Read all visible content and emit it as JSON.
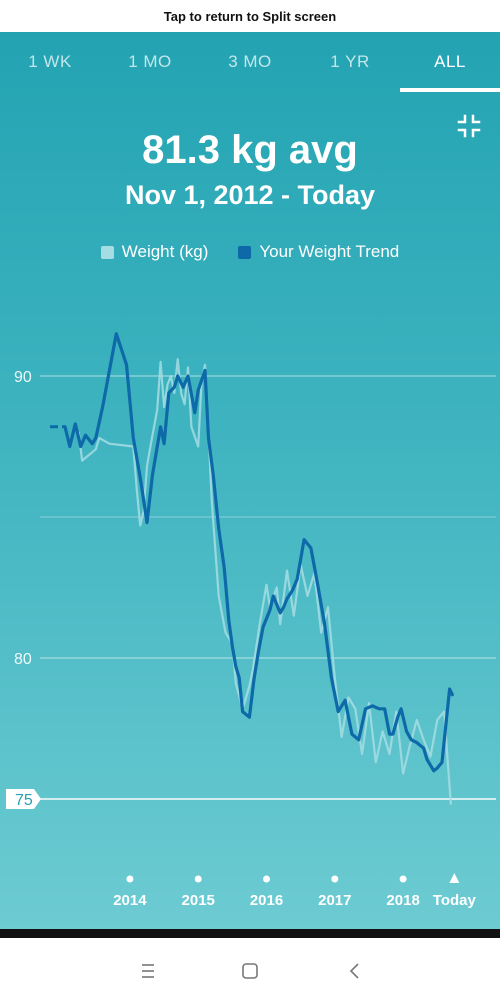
{
  "system": {
    "split_screen_label": "Tap to return to Split screen"
  },
  "tabs": [
    {
      "label": "1 WK",
      "active": false
    },
    {
      "label": "1 MO",
      "active": false
    },
    {
      "label": "3 MO",
      "active": false
    },
    {
      "label": "1 YR",
      "active": false
    },
    {
      "label": "ALL",
      "active": true
    }
  ],
  "icons": {
    "collapse": "collapse-icon",
    "nav_menu": "menu-icon",
    "nav_home": "home-square-icon",
    "nav_back": "back-chevron-icon"
  },
  "summary": {
    "headline": "81.3 kg avg",
    "date_range": "Nov 1, 2012 - Today"
  },
  "legend": [
    {
      "label": "Weight (kg)",
      "color": "#a6dde4"
    },
    {
      "label": "Your Weight Trend",
      "color": "#0e69a8"
    }
  ],
  "colors": {
    "background_top": "#23a3b2",
    "background_bottom": "#6dcbd2",
    "trend": "#0e69a8",
    "weight": "#a6dde4",
    "gridline": "#ffffff"
  },
  "chart_data": {
    "type": "line",
    "title": "",
    "xlabel": "",
    "ylabel": "",
    "ylim": [
      72.5,
      99
    ],
    "xlim": [
      2012.83,
      2018.95
    ],
    "y_ticks": [
      "90",
      "80",
      "75"
    ],
    "highlighted_y_tick": "75",
    "x_ticks": [
      {
        "label": "2014",
        "x": 2014.0,
        "marker": "dot"
      },
      {
        "label": "2015",
        "x": 2015.0,
        "marker": "dot"
      },
      {
        "label": "2016",
        "x": 2016.0,
        "marker": "dot"
      },
      {
        "label": "2017",
        "x": 2017.0,
        "marker": "dot"
      },
      {
        "label": "2018",
        "x": 2018.0,
        "marker": "dot"
      },
      {
        "label": "Today",
        "x": 2018.75,
        "marker": "triangle"
      }
    ],
    "series": [
      {
        "name": "Your Weight Trend",
        "x": [
          2012.83,
          2013.05,
          2013.12,
          2013.2,
          2013.28,
          2013.35,
          2013.45,
          2013.5,
          2013.6,
          2013.8,
          2013.95,
          2014.05,
          2014.15,
          2014.25,
          2014.33,
          2014.45,
          2014.5,
          2014.57,
          2014.65,
          2014.7,
          2014.78,
          2014.85,
          2014.95,
          2015.0,
          2015.1,
          2015.15,
          2015.22,
          2015.3,
          2015.38,
          2015.45,
          2015.5,
          2015.55,
          2015.6,
          2015.65,
          2015.75,
          2015.82,
          2015.88,
          2015.95,
          2016.05,
          2016.1,
          2016.2,
          2016.25,
          2016.3,
          2016.38,
          2016.45,
          2016.55,
          2016.65,
          2016.75,
          2016.85,
          2016.95,
          2017.05,
          2017.15,
          2017.25,
          2017.35,
          2017.45,
          2017.55,
          2017.65,
          2017.73,
          2017.8,
          2017.85,
          2017.92,
          2017.97,
          2018.05,
          2018.12,
          2018.2,
          2018.3,
          2018.35,
          2018.45,
          2018.5,
          2018.57,
          2018.62,
          2018.68,
          2018.72
        ],
        "values": [
          88.2,
          88.2,
          87.5,
          88.3,
          87.5,
          87.9,
          87.6,
          87.8,
          88.9,
          91.5,
          90.4,
          87.8,
          86.4,
          84.8,
          86.5,
          88.2,
          87.6,
          89.4,
          89.6,
          90.0,
          89.6,
          90.0,
          88.7,
          89.5,
          90.2,
          87.8,
          86.5,
          84.6,
          83.2,
          81.3,
          80.4,
          79.7,
          79.3,
          78.1,
          77.9,
          79.3,
          80.2,
          81.1,
          81.7,
          82.2,
          81.6,
          81.8,
          82.1,
          82.4,
          82.8,
          84.2,
          83.9,
          82.6,
          81.2,
          79.3,
          78.1,
          78.5,
          77.3,
          77.1,
          78.2,
          78.3,
          78.2,
          78.2,
          77.3,
          77.3,
          77.9,
          78.2,
          77.4,
          77.1,
          77.0,
          76.8,
          76.4,
          76.0,
          76.1,
          76.3,
          77.5,
          78.9,
          78.7
        ]
      },
      {
        "name": "Weight (kg)",
        "x": [
          2013.25,
          2013.3,
          2013.5,
          2013.55,
          2013.7,
          2014.05,
          2014.1,
          2014.15,
          2014.2,
          2014.25,
          2014.3,
          2014.4,
          2014.45,
          2014.5,
          2014.55,
          2014.6,
          2014.65,
          2014.7,
          2014.75,
          2014.8,
          2014.85,
          2014.9,
          2015.0,
          2015.05,
          2015.1,
          2015.2,
          2015.3,
          2015.4,
          2015.5,
          2015.55,
          2015.65,
          2015.75,
          2015.8,
          2015.9,
          2016.0,
          2016.05,
          2016.15,
          2016.2,
          2016.3,
          2016.4,
          2016.5,
          2016.6,
          2016.7,
          2016.8,
          2016.9,
          2017.0,
          2017.1,
          2017.2,
          2017.3,
          2017.4,
          2017.5,
          2017.6,
          2017.7,
          2017.8,
          2017.9,
          2018.0,
          2018.1,
          2018.2,
          2018.3,
          2018.4,
          2018.5,
          2018.6,
          2018.7
        ],
        "values": [
          88.0,
          87.0,
          87.4,
          87.8,
          87.6,
          87.5,
          86.0,
          84.7,
          85.2,
          86.8,
          87.5,
          88.8,
          90.5,
          88.9,
          89.7,
          90.0,
          89.4,
          90.6,
          89.4,
          89.0,
          90.3,
          88.2,
          87.5,
          89.8,
          90.4,
          85.5,
          82.2,
          80.9,
          80.5,
          79.1,
          78.2,
          79.0,
          79.6,
          81.2,
          82.6,
          81.8,
          82.5,
          81.2,
          83.1,
          81.5,
          83.3,
          82.2,
          83.0,
          80.9,
          81.8,
          79.3,
          77.2,
          78.6,
          78.2,
          76.6,
          78.4,
          76.3,
          77.4,
          76.6,
          78.1,
          75.9,
          76.9,
          77.8,
          77.1,
          76.5,
          77.8,
          78.1,
          74.8
        ]
      }
    ]
  }
}
